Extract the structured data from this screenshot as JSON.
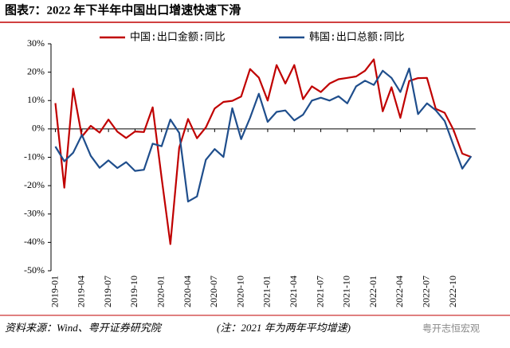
{
  "chart_data": {
    "type": "line",
    "title": "图表7：2022 年下半年中国出口增速快速下滑",
    "categories": [
      "2019-01",
      null,
      null,
      "2019-04",
      null,
      null,
      "2019-07",
      null,
      null,
      "2019-10",
      null,
      null,
      "2020-01",
      null,
      null,
      "2020-04",
      null,
      null,
      "2020-07",
      null,
      null,
      "2020-10",
      null,
      null,
      "2021-01",
      null,
      null,
      "2021-04",
      null,
      null,
      "2021-07",
      null,
      null,
      "2021-10",
      null,
      null,
      "2022-01",
      null,
      null,
      "2022-04",
      null,
      null,
      "2022-07",
      null,
      null,
      "2022-10",
      null,
      null
    ],
    "series": [
      {
        "name": "中国:出口金额:同比",
        "color": "#c00000",
        "values": [
          9.1,
          -20.7,
          14.2,
          -2.7,
          1.1,
          -1.3,
          3.3,
          -1.0,
          -3.2,
          -0.9,
          -1.1,
          7.6,
          -17.2,
          -40.6,
          -6.6,
          3.5,
          -3.3,
          0.5,
          7.2,
          9.5,
          9.9,
          11.4,
          21.1,
          18.1,
          10.0,
          22.5,
          16.0,
          22.5,
          10.5,
          15.0,
          13.0,
          16.0,
          17.5,
          18.0,
          18.5,
          20.5,
          24.5,
          6.2,
          14.7,
          3.9,
          16.9,
          17.9,
          18.0,
          7.1,
          5.7,
          -0.3,
          -8.7,
          -9.9
        ]
      },
      {
        "name": "韩国:出口总额:同比",
        "color": "#1f4e8c",
        "values": [
          -6.2,
          -11.4,
          -8.4,
          -2.1,
          -9.5,
          -13.7,
          -11.1,
          -13.8,
          -11.7,
          -14.8,
          -14.4,
          -5.2,
          -6.1,
          3.3,
          -1.4,
          -25.6,
          -23.8,
          -10.9,
          -7.1,
          -9.9,
          7.3,
          -3.6,
          3.9,
          12.4,
          2.5,
          6.0,
          6.5,
          3.0,
          5.0,
          10.0,
          11.0,
          10.0,
          11.5,
          9.0,
          15.0,
          17.0,
          15.5,
          20.5,
          18.0,
          13.0,
          21.3,
          5.2,
          9.0,
          6.6,
          2.8,
          -5.7,
          -14.0,
          -9.6
        ]
      }
    ],
    "ylim": [
      -50,
      30
    ],
    "yticks": [
      {
        "value": -50,
        "label": "-50%"
      },
      {
        "value": -40,
        "label": "-40%"
      },
      {
        "value": -30,
        "label": "-30%"
      },
      {
        "value": -20,
        "label": "-20%"
      },
      {
        "value": -10,
        "label": "-10%"
      },
      {
        "value": 0,
        "label": "0%"
      },
      {
        "value": 10,
        "label": "10%"
      },
      {
        "value": 20,
        "label": "20%"
      },
      {
        "value": 30,
        "label": "30%"
      }
    ],
    "source": "资料来源：Wind、粤开证券研究院",
    "note": "(注：2021 年为两年平均增速)",
    "watermark": "粤开志恒宏观"
  }
}
